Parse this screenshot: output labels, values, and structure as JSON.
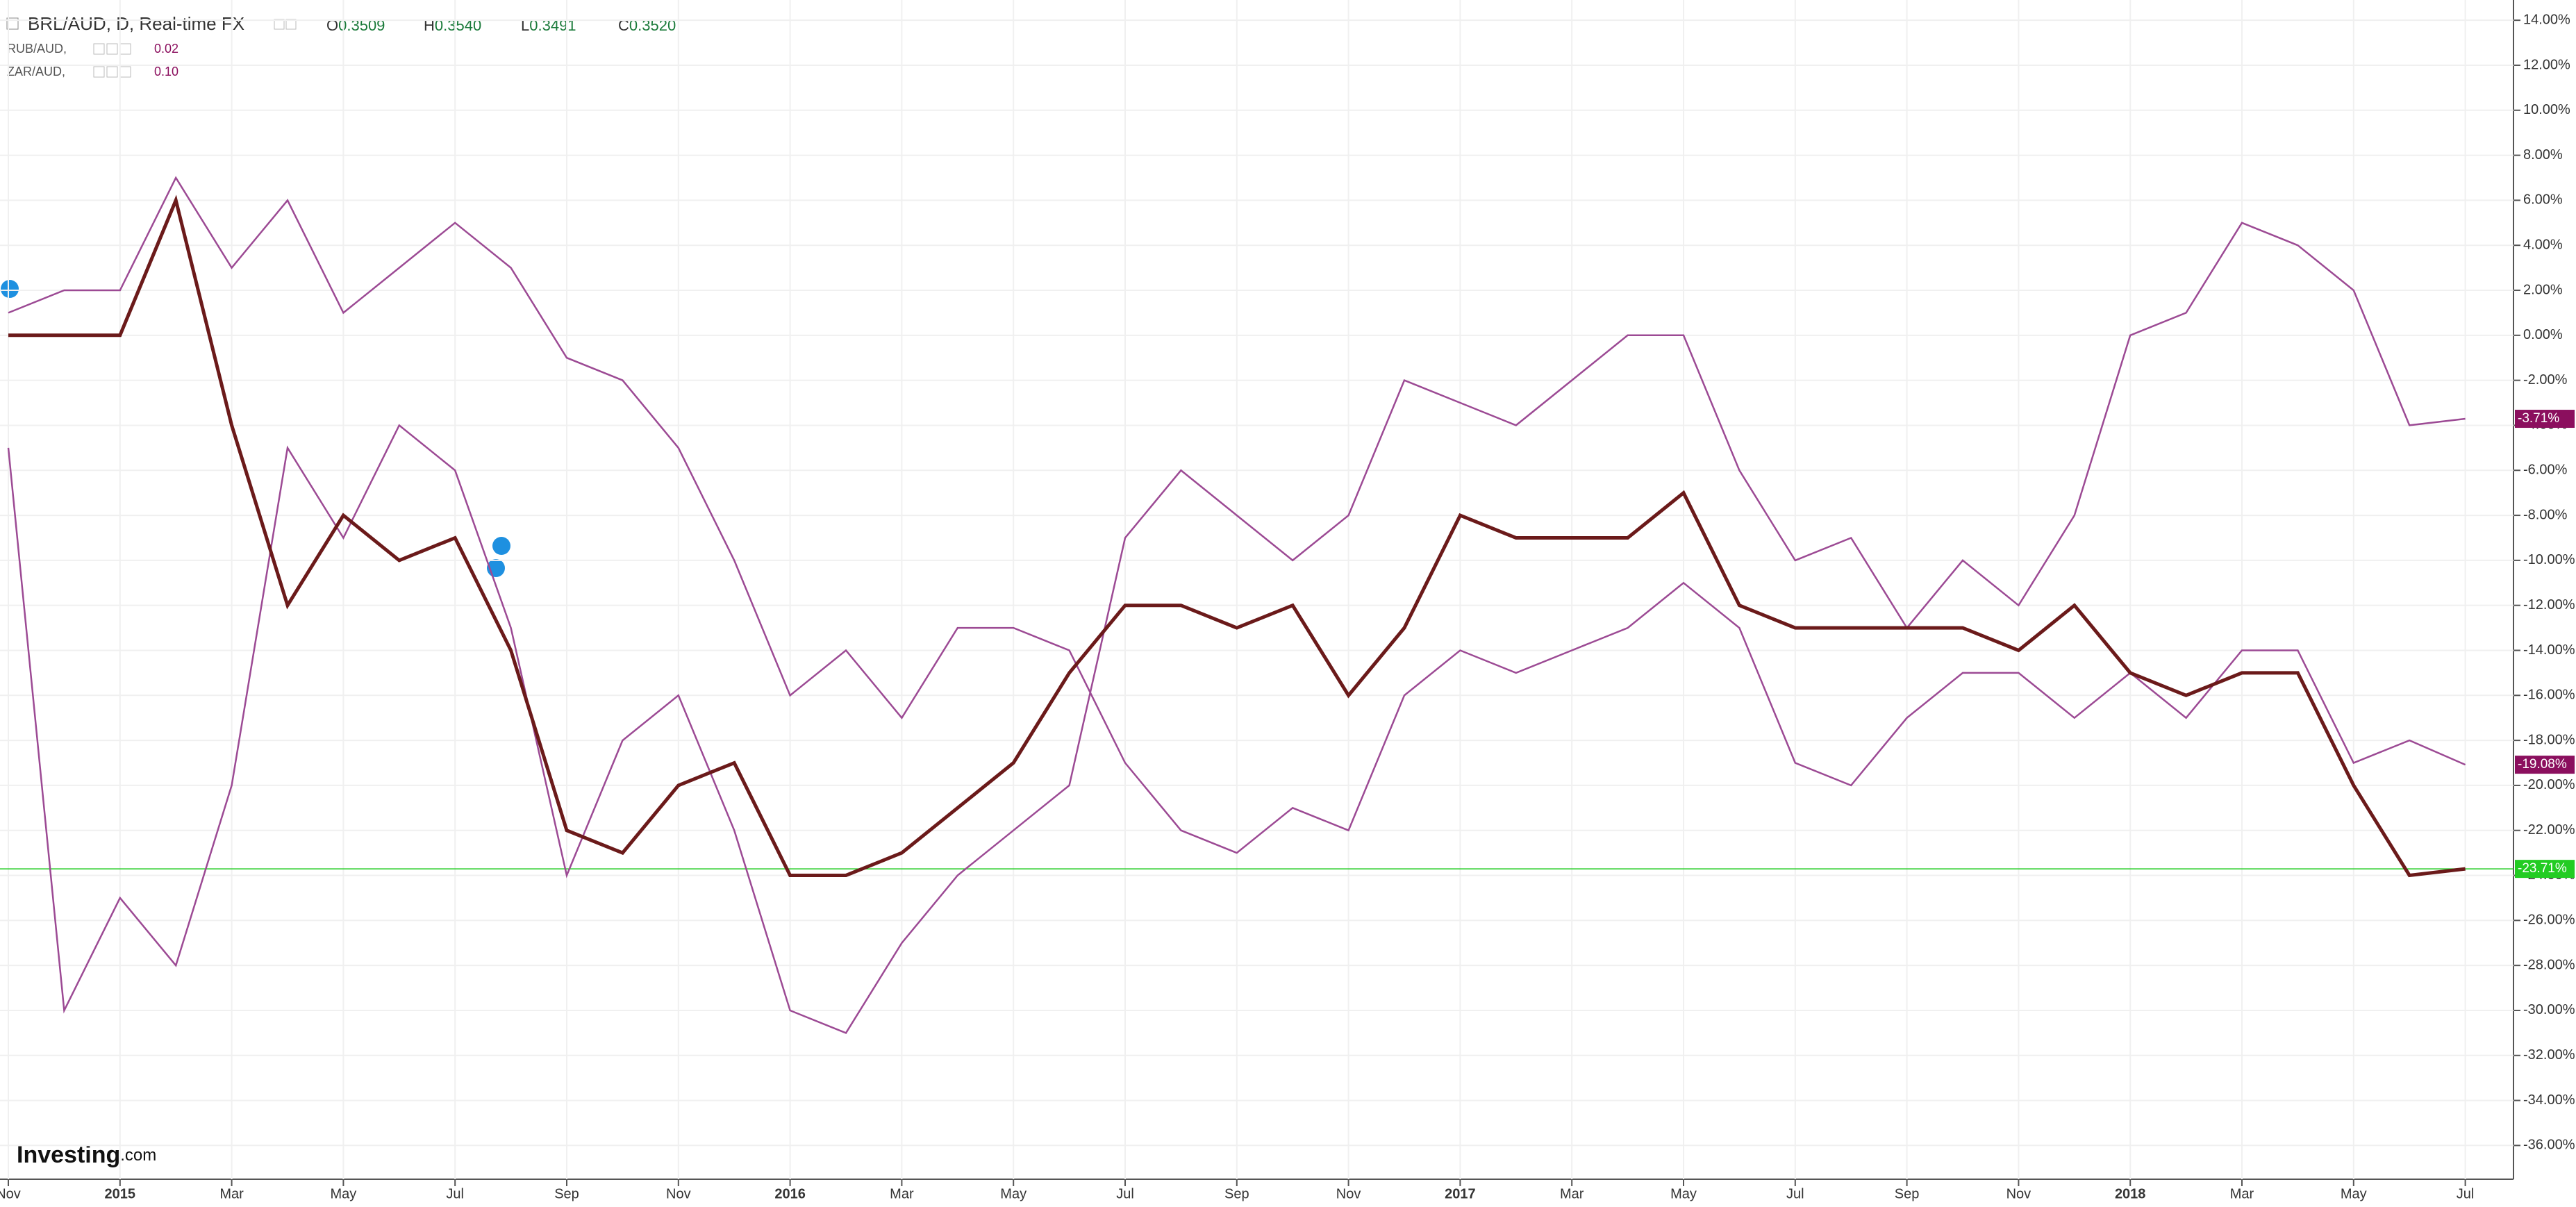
{
  "chart_data": {
    "type": "line",
    "title": "BRL/AUD, D, Real-time FX",
    "ohlc": [
      {
        "label": "O",
        "value": "0.3509"
      },
      {
        "label": "H",
        "value": "0.3540"
      },
      {
        "label": "L",
        "value": "0.3491"
      },
      {
        "label": "C",
        "value": "0.3520"
      }
    ],
    "comparisons": [
      {
        "name": "RUB/AUD,",
        "value": "0.02"
      },
      {
        "name": "ZAR/AUD,",
        "value": "0.10"
      }
    ],
    "logo": "Investing",
    "logo_suffix": ".com",
    "categories": [
      "Nov",
      null,
      "2015",
      null,
      "Mar",
      null,
      "May",
      null,
      "Jul",
      null,
      "Sep",
      null,
      "Nov",
      null,
      "2016",
      null,
      "Mar",
      null,
      "May",
      null,
      "Jul",
      null,
      "Sep",
      null,
      "Nov",
      null,
      "2017",
      null,
      "Mar",
      null,
      "May",
      null,
      "Jul",
      null,
      "Sep",
      null,
      "Nov",
      null,
      "2018",
      null,
      "Mar",
      null,
      "May",
      null,
      "Jul"
    ],
    "series": [
      {
        "name": "BRL/AUD",
        "color": "#6b1a1a",
        "last_label": "-23.71%",
        "label_color": "#22cc22",
        "values": [
          0,
          0,
          0,
          6,
          -4,
          -12,
          -8,
          -10,
          -9,
          -14,
          -22,
          -23,
          -20,
          -19,
          -24,
          -24,
          -23,
          -21,
          -19,
          -15,
          -12,
          -12,
          -13,
          -12,
          -16,
          -13,
          -8,
          -9,
          -9,
          -9,
          -7,
          -12,
          -13,
          -13,
          -13,
          -13,
          -14,
          -12,
          -15,
          -16,
          -15,
          -15,
          -20,
          -24,
          -23.71
        ]
      },
      {
        "name": "RUB/AUD",
        "color": "#9c4a94",
        "last_label": "-3.71%",
        "label_color": "#8b0f5e",
        "values": [
          -5,
          -30,
          -25,
          -28,
          -20,
          -5,
          -9,
          -4,
          -6,
          -13,
          -24,
          -18,
          -16,
          -22,
          -30,
          -31,
          -27,
          -24,
          -22,
          -20,
          -9,
          -6,
          -8,
          -10,
          -8,
          -2,
          -3,
          -4,
          -2,
          0,
          0,
          -6,
          -10,
          -9,
          -13,
          -10,
          -12,
          -8,
          0,
          1,
          5,
          4,
          2,
          -4,
          -3.71
        ]
      },
      {
        "name": "ZAR/AUD",
        "color": "#9c4a94",
        "last_label": "-19.08%",
        "label_color": "#8b0f5e",
        "values": [
          1,
          2,
          2,
          7,
          3,
          6,
          1,
          3,
          5,
          3,
          -1,
          -2,
          -5,
          -10,
          -16,
          -14,
          -17,
          -13,
          -13,
          -14,
          -19,
          -22,
          -23,
          -21,
          -22,
          -16,
          -14,
          -15,
          -14,
          -13,
          -11,
          -13,
          -19,
          -20,
          -17,
          -15,
          -15,
          -17,
          -15,
          -17,
          -14,
          -14,
          -19,
          -18,
          -19.08
        ]
      }
    ],
    "ylim": [
      -37.5,
      14.9
    ],
    "yticks": [
      {
        "value": 14,
        "label": "14.00%"
      },
      {
        "value": 12,
        "label": "12.00%"
      },
      {
        "value": 10,
        "label": "10.00%"
      },
      {
        "value": 8,
        "label": "8.00%"
      },
      {
        "value": 6,
        "label": "6.00%"
      },
      {
        "value": 4,
        "label": "4.00%"
      },
      {
        "value": 2,
        "label": "2.00%"
      },
      {
        "value": 0,
        "label": "0.00%"
      },
      {
        "value": -2,
        "label": "-2.00%"
      },
      {
        "value": -4,
        "label": "-4.00%"
      },
      {
        "value": -6,
        "label": "-6.00%"
      },
      {
        "value": -8,
        "label": "-8.00%"
      },
      {
        "value": -10,
        "label": "-10.00%"
      },
      {
        "value": -12,
        "label": "-12.00%"
      },
      {
        "value": -14,
        "label": "-14.00%"
      },
      {
        "value": -16,
        "label": "-16.00%"
      },
      {
        "value": -18,
        "label": "-18.00%"
      },
      {
        "value": -20,
        "label": "-20.00%"
      },
      {
        "value": -22,
        "label": "-22.00%"
      },
      {
        "value": -24,
        "label": "-24.00%"
      },
      {
        "value": -26,
        "label": "-26.00%"
      },
      {
        "value": -28,
        "label": "-28.00%"
      },
      {
        "value": -30,
        "label": "-30.00%"
      },
      {
        "value": -32,
        "label": "-32.00%"
      },
      {
        "value": -34,
        "label": "-34.00%"
      },
      {
        "value": -36,
        "label": "-36.00%"
      }
    ],
    "grid": true
  }
}
